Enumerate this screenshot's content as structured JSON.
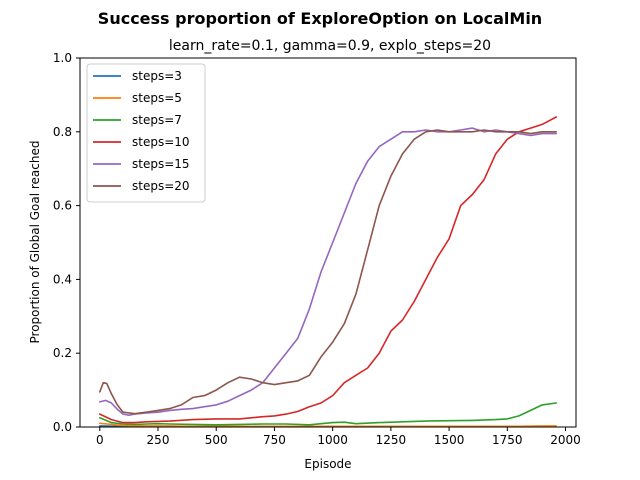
{
  "chart_data": {
    "type": "line",
    "title": "Success proportion of ExploreOption on LocalMin",
    "subtitle": "learn_rate=0.1, gamma=0.9, explo_steps=20",
    "xlabel": "Episode",
    "ylabel": "Proportion of Global Goal reached",
    "xlim": [
      -85,
      2045
    ],
    "ylim": [
      0.0,
      1.0
    ],
    "xticks": [
      0,
      250,
      500,
      750,
      1000,
      1250,
      1500,
      1750,
      2000
    ],
    "yticks": [
      0.0,
      0.2,
      0.4,
      0.6,
      0.8,
      1.0
    ],
    "ytick_labels": [
      "0.0",
      "0.2",
      "0.4",
      "0.6",
      "0.8",
      "1.0"
    ],
    "legend_position": "top-left",
    "grid": false,
    "series": [
      {
        "name": "steps=3",
        "color": "#1f77b4",
        "x": [
          0,
          100,
          200,
          300,
          400,
          500,
          600,
          700,
          800,
          900,
          1000,
          1100,
          1200,
          1300,
          1400,
          1500,
          1600,
          1700,
          1800,
          1900,
          1960
        ],
        "y": [
          0.003,
          0.002,
          0.002,
          0.001,
          0.001,
          0.001,
          0.001,
          0.001,
          0.001,
          0.001,
          0.001,
          0.001,
          0.001,
          0.001,
          0.001,
          0.001,
          0.001,
          0.001,
          0.001,
          0.001,
          0.001
        ]
      },
      {
        "name": "steps=5",
        "color": "#ff7f0e",
        "x": [
          0,
          100,
          200,
          300,
          400,
          500,
          600,
          700,
          800,
          900,
          1000,
          1100,
          1200,
          1300,
          1400,
          1500,
          1600,
          1700,
          1800,
          1900,
          1960
        ],
        "y": [
          0.01,
          0.004,
          0.003,
          0.003,
          0.002,
          0.002,
          0.002,
          0.002,
          0.002,
          0.002,
          0.002,
          0.002,
          0.002,
          0.002,
          0.002,
          0.002,
          0.002,
          0.002,
          0.002,
          0.003,
          0.003
        ]
      },
      {
        "name": "steps=7",
        "color": "#2ca02c",
        "x": [
          0,
          50,
          100,
          150,
          200,
          250,
          300,
          400,
          500,
          600,
          700,
          800,
          900,
          1000,
          1050,
          1100,
          1200,
          1300,
          1400,
          1500,
          1600,
          1700,
          1750,
          1800,
          1850,
          1900,
          1960
        ],
        "y": [
          0.025,
          0.012,
          0.008,
          0.007,
          0.008,
          0.009,
          0.008,
          0.007,
          0.006,
          0.007,
          0.008,
          0.008,
          0.006,
          0.012,
          0.013,
          0.009,
          0.012,
          0.014,
          0.016,
          0.017,
          0.018,
          0.02,
          0.022,
          0.03,
          0.045,
          0.06,
          0.065
        ]
      },
      {
        "name": "steps=10",
        "color": "#d62728",
        "x": [
          0,
          50,
          100,
          150,
          200,
          300,
          400,
          500,
          600,
          700,
          750,
          800,
          850,
          900,
          950,
          1000,
          1050,
          1100,
          1150,
          1200,
          1250,
          1300,
          1350,
          1400,
          1450,
          1500,
          1550,
          1600,
          1650,
          1700,
          1750,
          1800,
          1850,
          1900,
          1960
        ],
        "y": [
          0.035,
          0.02,
          0.012,
          0.012,
          0.014,
          0.016,
          0.02,
          0.022,
          0.022,
          0.028,
          0.03,
          0.035,
          0.042,
          0.055,
          0.065,
          0.085,
          0.12,
          0.14,
          0.16,
          0.2,
          0.26,
          0.29,
          0.34,
          0.4,
          0.46,
          0.51,
          0.6,
          0.63,
          0.67,
          0.74,
          0.78,
          0.8,
          0.81,
          0.82,
          0.84
        ]
      },
      {
        "name": "steps=15",
        "color": "#9467bd",
        "x": [
          0,
          25,
          50,
          75,
          100,
          125,
          150,
          200,
          250,
          300,
          350,
          400,
          450,
          500,
          550,
          600,
          650,
          700,
          750,
          800,
          850,
          900,
          950,
          1000,
          1050,
          1100,
          1150,
          1200,
          1250,
          1300,
          1350,
          1400,
          1450,
          1500,
          1550,
          1600,
          1650,
          1700,
          1750,
          1800,
          1850,
          1900,
          1960
        ],
        "y": [
          0.068,
          0.072,
          0.065,
          0.048,
          0.035,
          0.032,
          0.035,
          0.038,
          0.04,
          0.045,
          0.048,
          0.05,
          0.055,
          0.06,
          0.07,
          0.085,
          0.1,
          0.12,
          0.16,
          0.2,
          0.24,
          0.32,
          0.42,
          0.5,
          0.58,
          0.66,
          0.72,
          0.76,
          0.78,
          0.8,
          0.8,
          0.805,
          0.8,
          0.8,
          0.805,
          0.81,
          0.8,
          0.805,
          0.8,
          0.795,
          0.79,
          0.795,
          0.795
        ]
      },
      {
        "name": "steps=20",
        "color": "#8c564b",
        "x": [
          0,
          15,
          30,
          50,
          75,
          100,
          150,
          200,
          250,
          300,
          350,
          400,
          450,
          500,
          550,
          600,
          650,
          700,
          750,
          800,
          850,
          900,
          950,
          1000,
          1050,
          1100,
          1150,
          1200,
          1250,
          1300,
          1350,
          1400,
          1450,
          1500,
          1550,
          1600,
          1650,
          1700,
          1750,
          1800,
          1850,
          1900,
          1960
        ],
        "y": [
          0.095,
          0.12,
          0.118,
          0.09,
          0.06,
          0.04,
          0.036,
          0.04,
          0.045,
          0.05,
          0.06,
          0.08,
          0.085,
          0.1,
          0.12,
          0.135,
          0.13,
          0.12,
          0.115,
          0.12,
          0.125,
          0.14,
          0.19,
          0.23,
          0.28,
          0.36,
          0.48,
          0.6,
          0.68,
          0.74,
          0.78,
          0.8,
          0.805,
          0.8,
          0.8,
          0.8,
          0.805,
          0.8,
          0.8,
          0.8,
          0.795,
          0.8,
          0.8
        ]
      }
    ]
  }
}
